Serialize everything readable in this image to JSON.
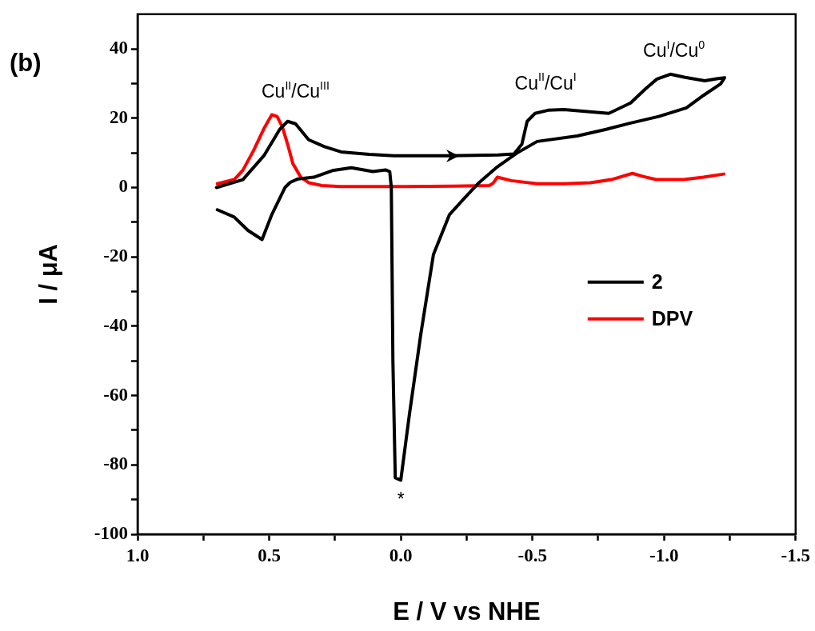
{
  "chart_data": {
    "type": "line",
    "title": "(b)",
    "xlabel": "E / V vs NHE",
    "ylabel": "I / μA",
    "xlim": [
      1.0,
      -1.5
    ],
    "xticks": [
      {
        "value": 1.0,
        "label": "1.0"
      },
      {
        "value": 0.75,
        "label": null
      },
      {
        "value": 0.5,
        "label": "0.5"
      },
      {
        "value": 0.25,
        "label": null
      },
      {
        "value": 0.0,
        "label": "0.0"
      },
      {
        "value": -0.25,
        "label": null
      },
      {
        "value": -0.5,
        "label": "-0.5"
      },
      {
        "value": -0.75,
        "label": null
      },
      {
        "value": -1.0,
        "label": "-1.0"
      },
      {
        "value": -1.25,
        "label": null
      },
      {
        "value": -1.5,
        "label": "-1.5"
      }
    ],
    "ylim": [
      -100,
      50
    ],
    "yticks": [
      -100,
      {
        "value": -90,
        "label": null
      },
      -80,
      {
        "value": -70,
        "label": null
      },
      -60,
      {
        "value": -50,
        "label": null
      },
      -40,
      {
        "value": -30,
        "label": null
      },
      -20,
      {
        "value": -10,
        "label": null
      },
      0,
      {
        "value": 10,
        "label": null
      },
      20,
      {
        "value": 30,
        "label": null
      },
      40
    ],
    "grid": false,
    "legend": "right",
    "marker": "none",
    "line_style": "solid",
    "series": [
      {
        "name": "2",
        "color": "#000000",
        "x": [
          0.7,
          0.6,
          0.52,
          0.46,
          0.43,
          0.4,
          0.35,
          0.29,
          0.227,
          0.12,
          0.027,
          -0.1,
          -0.18,
          -0.28,
          -0.37,
          -0.43,
          -0.46,
          -0.48,
          -0.51,
          -0.56,
          -0.62,
          -0.7,
          -0.79,
          -0.873,
          -0.93,
          -0.973,
          -1.024,
          -1.08,
          -1.155,
          -1.2,
          -1.23,
          -1.215,
          -1.15,
          -1.085,
          -0.98,
          -0.873,
          -0.78,
          -0.67,
          -0.518,
          -0.44,
          -0.367,
          -0.297,
          -0.24,
          -0.185,
          -0.124,
          -0.076,
          -0.033,
          0.0,
          0.021,
          0.03,
          0.036,
          0.042,
          0.058,
          0.106,
          0.188,
          0.26,
          0.33,
          0.39,
          0.42,
          0.44,
          0.49,
          0.527,
          0.58,
          0.633,
          0.697
        ],
        "values": [
          0,
          2.3,
          9.2,
          16.8,
          19.1,
          18.4,
          13.8,
          11.8,
          10.3,
          9.6,
          9.2,
          9.2,
          9.2,
          9.3,
          9.4,
          9.7,
          12.5,
          19.1,
          21.4,
          22.3,
          22.5,
          22.0,
          21.4,
          24.4,
          28.5,
          31.3,
          32.7,
          31.8,
          30.8,
          31.4,
          31.7,
          29.9,
          26.6,
          23.0,
          20.5,
          18.6,
          16.8,
          14.9,
          13.3,
          9.9,
          6.0,
          1.4,
          -3.2,
          -7.8,
          -19.3,
          -42.3,
          -65.3,
          -84.4,
          -83.7,
          -50,
          0,
          4.6,
          5.1,
          4.6,
          5.7,
          4.9,
          3.0,
          2.5,
          1.5,
          0,
          -7.8,
          -15,
          -12.4,
          -8.5,
          -6.4
        ]
      },
      {
        "name": "DPV",
        "color": "#ff0000",
        "x": [
          0.697,
          0.633,
          0.6,
          0.56,
          0.52,
          0.49,
          0.47,
          0.45,
          0.43,
          0.41,
          0.38,
          0.35,
          0.3,
          0.23,
          0.0,
          -0.2,
          -0.336,
          -0.35,
          -0.367,
          -0.42,
          -0.518,
          -0.62,
          -0.72,
          -0.8,
          -0.88,
          -0.92,
          -0.97,
          -1.075,
          -1.15,
          -1.227
        ],
        "values": [
          1.1,
          2.3,
          5.0,
          10.6,
          17.0,
          21.0,
          20.5,
          17.5,
          12.5,
          6.9,
          3.0,
          1.4,
          0.6,
          0.3,
          0.3,
          0.4,
          0.6,
          1.2,
          3.0,
          2.0,
          1.1,
          1.1,
          1.4,
          2.3,
          4.1,
          3.2,
          2.3,
          2.3,
          3.0,
          3.9
        ]
      }
    ],
    "annotations": [
      "Cu$^{II}$/Cu$^{III}$",
      "Cu$^{II}$/Cu$^{I}$",
      "Cu$^{I}$/Cu$^{0}$",
      "*"
    ]
  }
}
